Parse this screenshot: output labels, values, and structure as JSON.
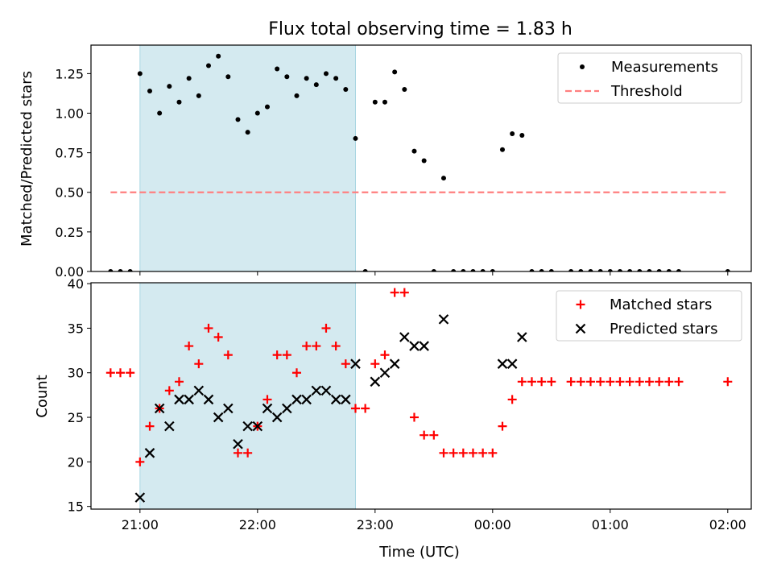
{
  "figure": {
    "title": "Flux total observing time = 1.83 h"
  },
  "chart_data": [
    {
      "type": "scatter",
      "panel": "top",
      "ylabel": "Matched/Predicted stars",
      "xlabel": "",
      "ylim": [
        0,
        1.43
      ],
      "xlim": [
        "20:35",
        "02:12"
      ],
      "yticks": [
        0.0,
        0.25,
        0.5,
        0.75,
        1.0,
        1.25
      ],
      "ytick_labels": [
        "0.00",
        "0.25",
        "0.50",
        "0.75",
        "1.00",
        "1.25"
      ],
      "xtick_labels_visible": false,
      "grid": false,
      "legend": "top-right",
      "shaded_interval": [
        "21:00",
        "22:50"
      ],
      "shade_color": "#d4eaf0",
      "series": [
        {
          "name": "Measurements",
          "marker": "dot",
          "color": "#000000",
          "points": [
            [
              "20:45",
              0.0
            ],
            [
              "20:50",
              0.0
            ],
            [
              "20:55",
              0.0
            ],
            [
              "21:00",
              1.25
            ],
            [
              "21:05",
              1.14
            ],
            [
              "21:10",
              1.0
            ],
            [
              "21:15",
              1.17
            ],
            [
              "21:20",
              1.07
            ],
            [
              "21:25",
              1.22
            ],
            [
              "21:30",
              1.11
            ],
            [
              "21:35",
              1.3
            ],
            [
              "21:40",
              1.36
            ],
            [
              "21:45",
              1.23
            ],
            [
              "21:50",
              0.96
            ],
            [
              "21:55",
              0.88
            ],
            [
              "22:00",
              1.0
            ],
            [
              "22:05",
              1.04
            ],
            [
              "22:10",
              1.28
            ],
            [
              "22:15",
              1.23
            ],
            [
              "22:20",
              1.11
            ],
            [
              "22:25",
              1.22
            ],
            [
              "22:30",
              1.18
            ],
            [
              "22:35",
              1.25
            ],
            [
              "22:40",
              1.22
            ],
            [
              "22:45",
              1.15
            ],
            [
              "22:50",
              0.84
            ],
            [
              "22:55",
              0.0
            ],
            [
              "23:00",
              1.07
            ],
            [
              "23:05",
              1.07
            ],
            [
              "23:10",
              1.26
            ],
            [
              "23:15",
              1.15
            ],
            [
              "23:20",
              0.76
            ],
            [
              "23:25",
              0.7
            ],
            [
              "23:30",
              0.0
            ],
            [
              "23:35",
              0.59
            ],
            [
              "23:40",
              0.0
            ],
            [
              "23:45",
              0.0
            ],
            [
              "23:50",
              0.0
            ],
            [
              "23:55",
              0.0
            ],
            [
              "00:00",
              0.0
            ],
            [
              "00:05",
              0.77
            ],
            [
              "00:10",
              0.87
            ],
            [
              "00:15",
              0.86
            ],
            [
              "00:20",
              0.0
            ],
            [
              "00:25",
              0.0
            ],
            [
              "00:30",
              0.0
            ],
            [
              "00:40",
              0.0
            ],
            [
              "00:45",
              0.0
            ],
            [
              "00:50",
              0.0
            ],
            [
              "00:55",
              0.0
            ],
            [
              "01:00",
              0.0
            ],
            [
              "01:05",
              0.0
            ],
            [
              "01:10",
              0.0
            ],
            [
              "01:15",
              0.0
            ],
            [
              "01:20",
              0.0
            ],
            [
              "01:25",
              0.0
            ],
            [
              "01:30",
              0.0
            ],
            [
              "01:35",
              0.0
            ],
            [
              "02:00",
              0.0
            ]
          ]
        },
        {
          "name": "Threshold",
          "marker": "dashed-line",
          "color": "#ff7f7f",
          "points": [
            [
              "20:45",
              0.5
            ],
            [
              "02:00",
              0.5
            ]
          ]
        }
      ]
    },
    {
      "type": "scatter",
      "panel": "bottom",
      "ylabel": "Count",
      "xlabel": "Time (UTC)",
      "ylim": [
        14.7,
        40.1
      ],
      "xlim": [
        "20:35",
        "02:12"
      ],
      "yticks": [
        15,
        20,
        25,
        30,
        35,
        40
      ],
      "ytick_labels": [
        "15",
        "20",
        "25",
        "30",
        "35",
        "40"
      ],
      "xticks": [
        "21:00",
        "22:00",
        "23:00",
        "00:00",
        "01:00",
        "02:00"
      ],
      "xtick_labels": [
        "21:00",
        "22:00",
        "23:00",
        "00:00",
        "01:00",
        "02:00"
      ],
      "grid": false,
      "legend": "top-right",
      "shaded_interval": [
        "21:00",
        "22:50"
      ],
      "shade_color": "#d4eaf0",
      "series": [
        {
          "name": "Matched stars",
          "marker": "plus",
          "color": "#ff0000",
          "points": [
            [
              "20:45",
              30
            ],
            [
              "20:50",
              30
            ],
            [
              "20:55",
              30
            ],
            [
              "21:00",
              20
            ],
            [
              "21:05",
              24
            ],
            [
              "21:10",
              26
            ],
            [
              "21:15",
              28
            ],
            [
              "21:20",
              29
            ],
            [
              "21:25",
              33
            ],
            [
              "21:30",
              31
            ],
            [
              "21:35",
              35
            ],
            [
              "21:40",
              34
            ],
            [
              "21:45",
              32
            ],
            [
              "21:50",
              21
            ],
            [
              "21:55",
              21
            ],
            [
              "22:00",
              24
            ],
            [
              "22:05",
              27
            ],
            [
              "22:10",
              32
            ],
            [
              "22:15",
              32
            ],
            [
              "22:20",
              30
            ],
            [
              "22:25",
              33
            ],
            [
              "22:30",
              33
            ],
            [
              "22:35",
              35
            ],
            [
              "22:40",
              33
            ],
            [
              "22:45",
              31
            ],
            [
              "22:50",
              26
            ],
            [
              "22:55",
              26
            ],
            [
              "23:00",
              31
            ],
            [
              "23:05",
              32
            ],
            [
              "23:10",
              39
            ],
            [
              "23:15",
              39
            ],
            [
              "23:20",
              25
            ],
            [
              "23:25",
              23
            ],
            [
              "23:30",
              23
            ],
            [
              "23:35",
              21
            ],
            [
              "23:40",
              21
            ],
            [
              "23:45",
              21
            ],
            [
              "23:50",
              21
            ],
            [
              "23:55",
              21
            ],
            [
              "00:00",
              21
            ],
            [
              "00:05",
              24
            ],
            [
              "00:10",
              27
            ],
            [
              "00:15",
              29
            ],
            [
              "00:20",
              29
            ],
            [
              "00:25",
              29
            ],
            [
              "00:30",
              29
            ],
            [
              "00:40",
              29
            ],
            [
              "00:45",
              29
            ],
            [
              "00:50",
              29
            ],
            [
              "00:55",
              29
            ],
            [
              "01:00",
              29
            ],
            [
              "01:05",
              29
            ],
            [
              "01:10",
              29
            ],
            [
              "01:15",
              29
            ],
            [
              "01:20",
              29
            ],
            [
              "01:25",
              29
            ],
            [
              "01:30",
              29
            ],
            [
              "01:35",
              29
            ],
            [
              "02:00",
              29
            ]
          ]
        },
        {
          "name": "Predicted stars",
          "marker": "x",
          "color": "#000000",
          "points": [
            [
              "21:00",
              16
            ],
            [
              "21:05",
              21
            ],
            [
              "21:10",
              26
            ],
            [
              "21:15",
              24
            ],
            [
              "21:20",
              27
            ],
            [
              "21:25",
              27
            ],
            [
              "21:30",
              28
            ],
            [
              "21:35",
              27
            ],
            [
              "21:40",
              25
            ],
            [
              "21:45",
              26
            ],
            [
              "21:50",
              22
            ],
            [
              "21:55",
              24
            ],
            [
              "22:00",
              24
            ],
            [
              "22:05",
              26
            ],
            [
              "22:10",
              25
            ],
            [
              "22:15",
              26
            ],
            [
              "22:20",
              27
            ],
            [
              "22:25",
              27
            ],
            [
              "22:30",
              28
            ],
            [
              "22:35",
              28
            ],
            [
              "22:40",
              27
            ],
            [
              "22:45",
              27
            ],
            [
              "22:50",
              31
            ],
            [
              "23:00",
              29
            ],
            [
              "23:05",
              30
            ],
            [
              "23:10",
              31
            ],
            [
              "23:15",
              34
            ],
            [
              "23:20",
              33
            ],
            [
              "23:25",
              33
            ],
            [
              "23:35",
              36
            ],
            [
              "00:05",
              31
            ],
            [
              "00:10",
              31
            ],
            [
              "00:15",
              34
            ]
          ]
        }
      ]
    }
  ]
}
